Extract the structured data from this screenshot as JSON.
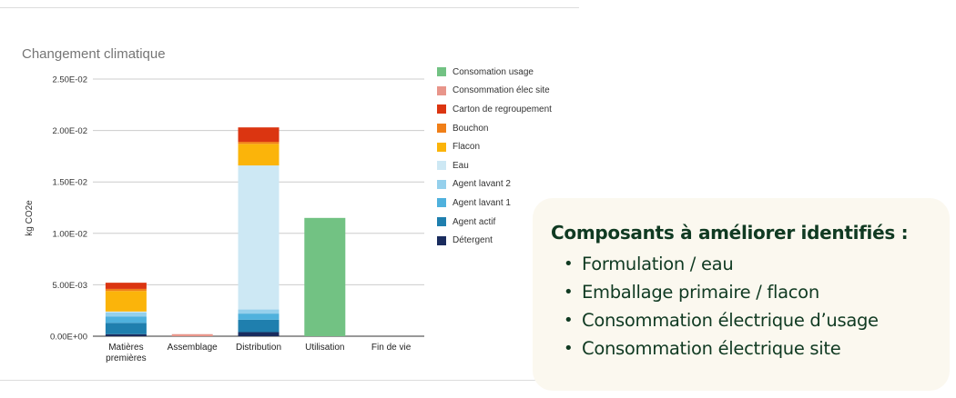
{
  "chart_data": {
    "type": "bar",
    "stacked": true,
    "title": "Changement climatique",
    "ylabel": "kg CO2e",
    "xlabel": "",
    "ylim": [
      0,
      0.025
    ],
    "yticks": [
      "0.00E+00",
      "5.00E-03",
      "1.00E-02",
      "1.50E-02",
      "2.00E-02",
      "2.50E-02"
    ],
    "ytick_values": [
      0,
      0.005,
      0.01,
      0.015,
      0.02,
      0.025
    ],
    "grid": true,
    "legend_position": "right",
    "categories": [
      "Matières premières",
      "Assemblage",
      "Distribution",
      "Utilisation",
      "Fin de vie"
    ],
    "category_lines": [
      [
        "Matières",
        "premières"
      ],
      [
        "Assemblage"
      ],
      [
        "Distribution"
      ],
      [
        "Utilisation"
      ],
      [
        "Fin de vie"
      ]
    ],
    "series": [
      {
        "name": "Détergent",
        "color": "#1a2c5e",
        "values": [
          0.0002,
          0,
          0.0004,
          0,
          0
        ]
      },
      {
        "name": "Agent actif",
        "color": "#1f7fae",
        "values": [
          0.0011,
          0,
          0.0012,
          0,
          0
        ]
      },
      {
        "name": "Agent lavant 1",
        "color": "#4fb1dd",
        "values": [
          0.0006,
          0,
          0.0006,
          0,
          0
        ]
      },
      {
        "name": "Agent lavant 2",
        "color": "#95d0ec",
        "values": [
          0.0004,
          0,
          0.0004,
          0,
          0
        ]
      },
      {
        "name": "Eau",
        "color": "#cde8f4",
        "values": [
          0.0001,
          0,
          0.014,
          0,
          0
        ]
      },
      {
        "name": "Flacon",
        "color": "#fbb40a",
        "values": [
          0.002,
          0,
          0.0021,
          0,
          0
        ]
      },
      {
        "name": "Bouchon",
        "color": "#f07f18",
        "values": [
          0.0002,
          0,
          0.0002,
          0,
          0
        ]
      },
      {
        "name": "Carton de regroupement",
        "color": "#db3511",
        "values": [
          0.0006,
          0,
          0.0014,
          0,
          0
        ]
      },
      {
        "name": "Consommation élec site",
        "color": "#e8958a",
        "values": [
          0,
          0.0002,
          0,
          0,
          0
        ]
      },
      {
        "name": "Consomation usage",
        "color": "#72c283",
        "values": [
          0,
          0,
          0,
          0.0115,
          0
        ]
      }
    ]
  },
  "callout": {
    "title": "Composants à améliorer identifiés :",
    "bullet": "•",
    "items": [
      "Formulation / eau",
      "Emballage primaire / flacon",
      "Consommation électrique d’usage",
      "Consommation électrique site"
    ]
  }
}
